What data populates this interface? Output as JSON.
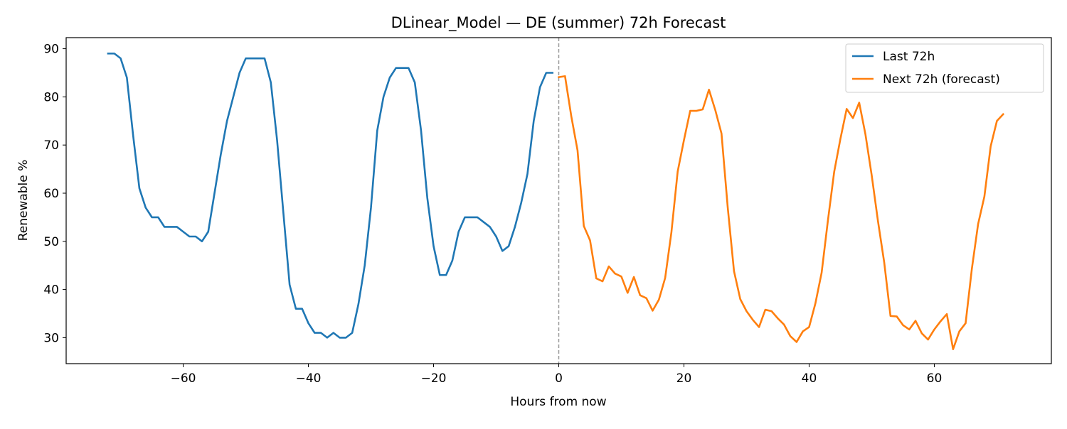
{
  "chart_data": {
    "type": "line",
    "title": "DLinear_Model — DE (summer) 72h Forecast",
    "xlabel": "Hours from now",
    "ylabel": "Renewable %",
    "xlim": [
      -78.7,
      78.7
    ],
    "ylim": [
      24.6,
      92.3
    ],
    "x_ticks": [
      -60,
      -40,
      -20,
      0,
      20,
      40,
      60
    ],
    "y_ticks": [
      30,
      40,
      50,
      60,
      70,
      80,
      90
    ],
    "grid": false,
    "legend_position": "upper right",
    "reference_line": {
      "x": 0,
      "style": "dashed",
      "color": "#999999"
    },
    "series": [
      {
        "name": "Last 72h",
        "color": "#1f77b4",
        "x": [
          -72,
          -71,
          -70,
          -69,
          -68,
          -67,
          -66,
          -65,
          -64,
          -63,
          -62,
          -61,
          -60,
          -59,
          -58,
          -57,
          -56,
          -55,
          -54,
          -53,
          -52,
          -51,
          -50,
          -49,
          -48,
          -47,
          -46,
          -45,
          -44,
          -43,
          -42,
          -41,
          -40,
          -39,
          -38,
          -37,
          -36,
          -35,
          -34,
          -33,
          -32,
          -31,
          -30,
          -29,
          -28,
          -27,
          -26,
          -25,
          -24,
          -23,
          -22,
          -21,
          -20,
          -19,
          -18,
          -17,
          -16,
          -15,
          -14,
          -13,
          -12,
          -11,
          -10,
          -9,
          -8,
          -7,
          -6,
          -5,
          -4,
          -3,
          -2,
          -1
        ],
        "values": [
          89,
          89,
          88,
          84,
          72,
          61,
          57,
          55,
          55,
          53,
          53,
          53,
          52,
          51,
          51,
          50,
          52,
          60,
          68,
          75,
          80,
          85,
          88,
          88,
          88,
          88,
          83,
          71,
          56,
          41,
          36,
          36,
          33,
          31,
          31,
          30,
          31,
          30,
          30,
          31,
          37,
          45,
          57,
          73,
          80,
          84,
          86,
          86,
          86,
          83,
          73,
          59,
          49,
          43,
          43,
          46,
          52,
          55,
          55,
          55,
          54,
          53,
          51,
          48,
          49,
          53,
          58,
          64,
          75,
          82,
          85,
          85
        ]
      },
      {
        "name": "Next 72h (forecast)",
        "color": "#ff7f0e",
        "x": [
          0,
          1,
          2,
          3,
          4,
          5,
          6,
          7,
          8,
          9,
          10,
          11,
          12,
          13,
          14,
          15,
          16,
          17,
          18,
          19,
          20,
          21,
          22,
          23,
          24,
          25,
          26,
          27,
          28,
          29,
          30,
          31,
          32,
          33,
          34,
          35,
          36,
          37,
          38,
          39,
          40,
          41,
          42,
          43,
          44,
          45,
          46,
          47,
          48,
          49,
          50,
          51,
          52,
          53,
          54,
          55,
          56,
          57,
          58,
          59,
          60,
          61,
          62,
          63,
          64,
          65,
          66,
          67,
          68,
          69,
          70,
          71
        ],
        "values": [
          84.1,
          84.3,
          76.0,
          68.9,
          53.2,
          50.2,
          42.3,
          41.7,
          44.8,
          43.3,
          42.7,
          39.3,
          42.6,
          38.8,
          38.2,
          35.6,
          37.9,
          42.4,
          51.9,
          64.5,
          71.0,
          77.1,
          77.1,
          77.4,
          81.5,
          77.3,
          72.4,
          57.0,
          43.8,
          38.0,
          35.5,
          33.7,
          32.2,
          35.8,
          35.5,
          34.0,
          32.7,
          30.3,
          29.1,
          31.3,
          32.2,
          37.1,
          43.5,
          54.3,
          64.4,
          71.3,
          77.5,
          75.6,
          78.8,
          72.2,
          63.7,
          54.2,
          45.6,
          34.5,
          34.4,
          32.6,
          31.7,
          33.5,
          30.9,
          29.6,
          31.7,
          33.4,
          34.9,
          27.6,
          31.3,
          33.0,
          44.3,
          53.6,
          59.3,
          69.7,
          75.0,
          76.4
        ]
      }
    ]
  }
}
